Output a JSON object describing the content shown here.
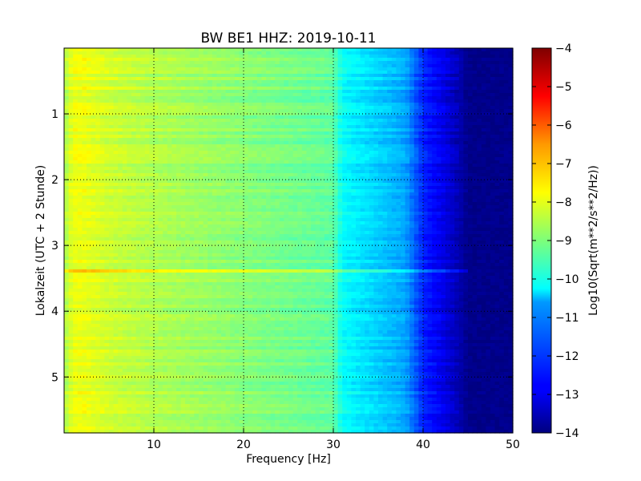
{
  "chart_data": {
    "type": "heatmap",
    "title": "BW BE1 HHZ: 2019-10-11",
    "xlabel": "Frequency [Hz]",
    "ylabel": "Lokalzeit (UTC + 2 Stunde)",
    "xlim": [
      0,
      50
    ],
    "ylim": [
      5.85,
      0
    ],
    "x_ticks": [
      10,
      20,
      30,
      40,
      50
    ],
    "y_ticks": [
      1,
      2,
      3,
      4,
      5
    ],
    "grid": true,
    "colormap": "jet",
    "colorbar": {
      "label": "Log10(Sqrt(m**2/s**2/Hz))",
      "range": [
        -14,
        -4
      ],
      "ticks": [
        -4,
        -5,
        -6,
        -7,
        -8,
        -9,
        -10,
        -11,
        -12,
        -13,
        -14
      ]
    },
    "spectrum_profile": {
      "frequency_hz": [
        0,
        1,
        2,
        5,
        10,
        15,
        20,
        25,
        30,
        31,
        35,
        38,
        40,
        42,
        44,
        45,
        50
      ],
      "log10_amplitude": [
        -8.6,
        -7.9,
        -7.9,
        -8.2,
        -8.5,
        -8.7,
        -8.9,
        -9.1,
        -9.3,
        -10.2,
        -10.7,
        -11.1,
        -12.4,
        -12.9,
        -13.5,
        -13.9,
        -13.9
      ]
    },
    "events": [
      {
        "time_h": 3.38,
        "log10_amplitude_offset": 0.7,
        "extends_to_hz": 45
      }
    ]
  }
}
